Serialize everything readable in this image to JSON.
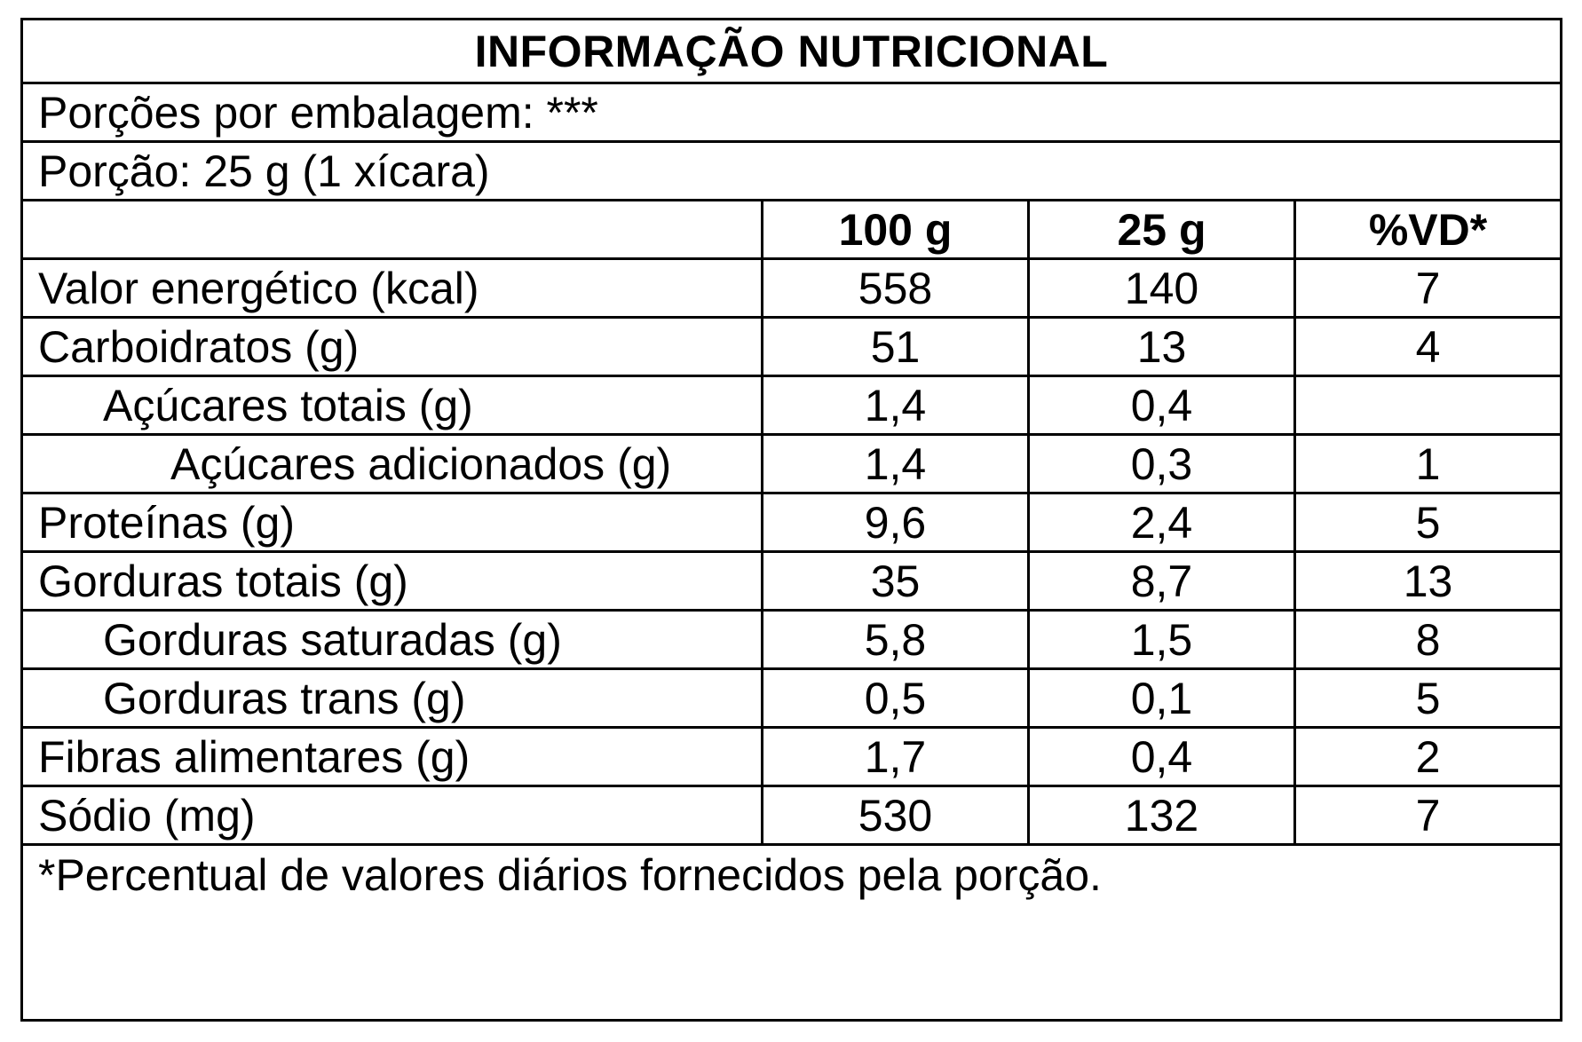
{
  "title": "INFORMAÇÃO NUTRICIONAL",
  "servings_per_package": "Porções por embalagem: ***",
  "serving_size": "Porção: 25 g (1 xícara)",
  "columns": [
    "",
    "100 g",
    "25 g",
    "%VD*"
  ],
  "rows": [
    {
      "name": "Valor energético (kcal)",
      "per100": "558",
      "perServing": "140",
      "vd": "7",
      "indent": 0
    },
    {
      "name": "Carboidratos (g)",
      "per100": "51",
      "perServing": "13",
      "vd": "4",
      "indent": 0
    },
    {
      "name": "Açúcares totais (g)",
      "per100": "1,4",
      "perServing": "0,4",
      "vd": "",
      "indent": 1
    },
    {
      "name": "Açúcares adicionados (g)",
      "per100": "1,4",
      "perServing": "0,3",
      "vd": "1",
      "indent": 2
    },
    {
      "name": "Proteínas (g)",
      "per100": "9,6",
      "perServing": "2,4",
      "vd": "5",
      "indent": 0
    },
    {
      "name": "Gorduras totais (g)",
      "per100": "35",
      "perServing": "8,7",
      "vd": "13",
      "indent": 0
    },
    {
      "name": "Gorduras saturadas (g)",
      "per100": "5,8",
      "perServing": "1,5",
      "vd": "8",
      "indent": 1
    },
    {
      "name": "Gorduras trans (g)",
      "per100": "0,5",
      "perServing": "0,1",
      "vd": "5",
      "indent": 1
    },
    {
      "name": "Fibras alimentares (g)",
      "per100": "1,7",
      "perServing": "0,4",
      "vd": "2",
      "indent": 0
    },
    {
      "name": "Sódio (mg)",
      "per100": "530",
      "perServing": "132",
      "vd": "7",
      "indent": 0
    }
  ],
  "footnote": "*Percentual de valores diários fornecidos pela porção."
}
